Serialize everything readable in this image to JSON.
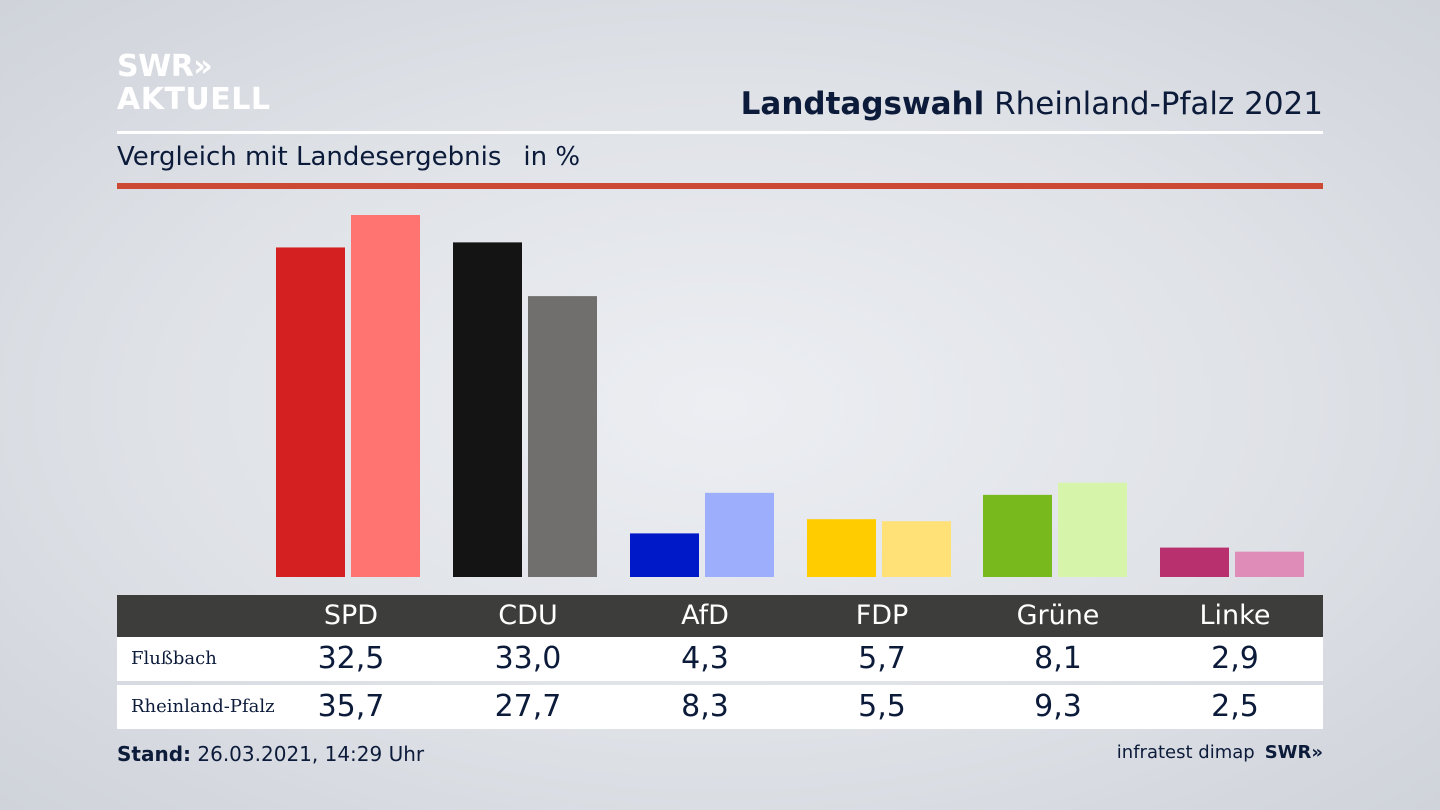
{
  "logo": {
    "line1": "SWR»",
    "line2": "AKTUELL"
  },
  "header": {
    "title_bold": "Landtagswahl",
    "title_rest": "Rheinland-Pfalz 2021"
  },
  "subtitle": {
    "text": "Vergleich mit Landesergebnis",
    "unit": "in %"
  },
  "table": {
    "headers": [
      "SPD",
      "CDU",
      "AfD",
      "FDP",
      "Grüne",
      "Linke"
    ],
    "rows": [
      {
        "label": "Flußbach",
        "values": [
          "32,5",
          "33,0",
          "4,3",
          "5,7",
          "8,1",
          "2,9"
        ]
      },
      {
        "label": "Rheinland-Pfalz",
        "values": [
          "35,7",
          "27,7",
          "8,3",
          "5,5",
          "9,3",
          "2,5"
        ]
      }
    ]
  },
  "footer": {
    "stand_label": "Stand:",
    "stand_value": "26.03.2021, 14:29 Uhr",
    "source": "infratest dimap",
    "source_logo": "SWR»"
  },
  "chart_data": {
    "type": "bar",
    "categories": [
      "SPD",
      "CDU",
      "AfD",
      "FDP",
      "Grüne",
      "Linke"
    ],
    "series": [
      {
        "name": "Flußbach",
        "values": [
          32.5,
          33.0,
          4.3,
          5.7,
          8.1,
          2.9
        ],
        "colors": [
          "#d42020",
          "#141414",
          "#0019c8",
          "#ffcc00",
          "#78b91e",
          "#b9306e"
        ]
      },
      {
        "name": "Rheinland-Pfalz",
        "values": [
          35.7,
          27.7,
          8.3,
          5.5,
          9.3,
          2.5
        ],
        "colors": [
          "#ff7370",
          "#716f6d",
          "#9caefc",
          "#ffe178",
          "#d6f5aa",
          "#e08cb9"
        ]
      }
    ],
    "ylim": [
      0,
      35.7
    ],
    "grid": false,
    "legend": "none"
  }
}
